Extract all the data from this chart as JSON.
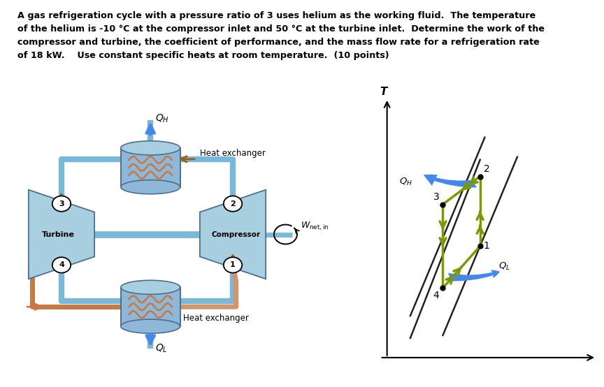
{
  "title_lines": [
    "A gas refrigeration cycle with a pressure ratio of 3 uses helium as the working fluid.  The temperature",
    "of the helium is -10 °C at the compressor inlet and 50 °C at the turbine inlet.  Determine the work of the",
    "compressor and turbine, the coefficient of performance, and the mass flow rate for a refrigeration rate",
    "of 18 kW.    Use constant specific heats at room temperature.  (10 points)"
  ],
  "bg_color": "#ffffff",
  "blue_pipe": "#7ab8d9",
  "orange_pipe": "#c87941",
  "orange_pipe2": "#d4956a",
  "turbine_fill": "#a8cfe0",
  "compressor_fill": "#a8cfe0",
  "hx_body_fill": "#8fb8d8",
  "hx_top_fill": "#a8cfe0",
  "shaft_fill": "#7ab8d9",
  "coil_color": "#c87941",
  "cycle_color": "#7a9a00",
  "iso_color": "#222222",
  "node_fill": "#ffffff",
  "node_edge": "#000000",
  "arrow_blue": "#4488ee",
  "arrow_brown": "#a06010"
}
